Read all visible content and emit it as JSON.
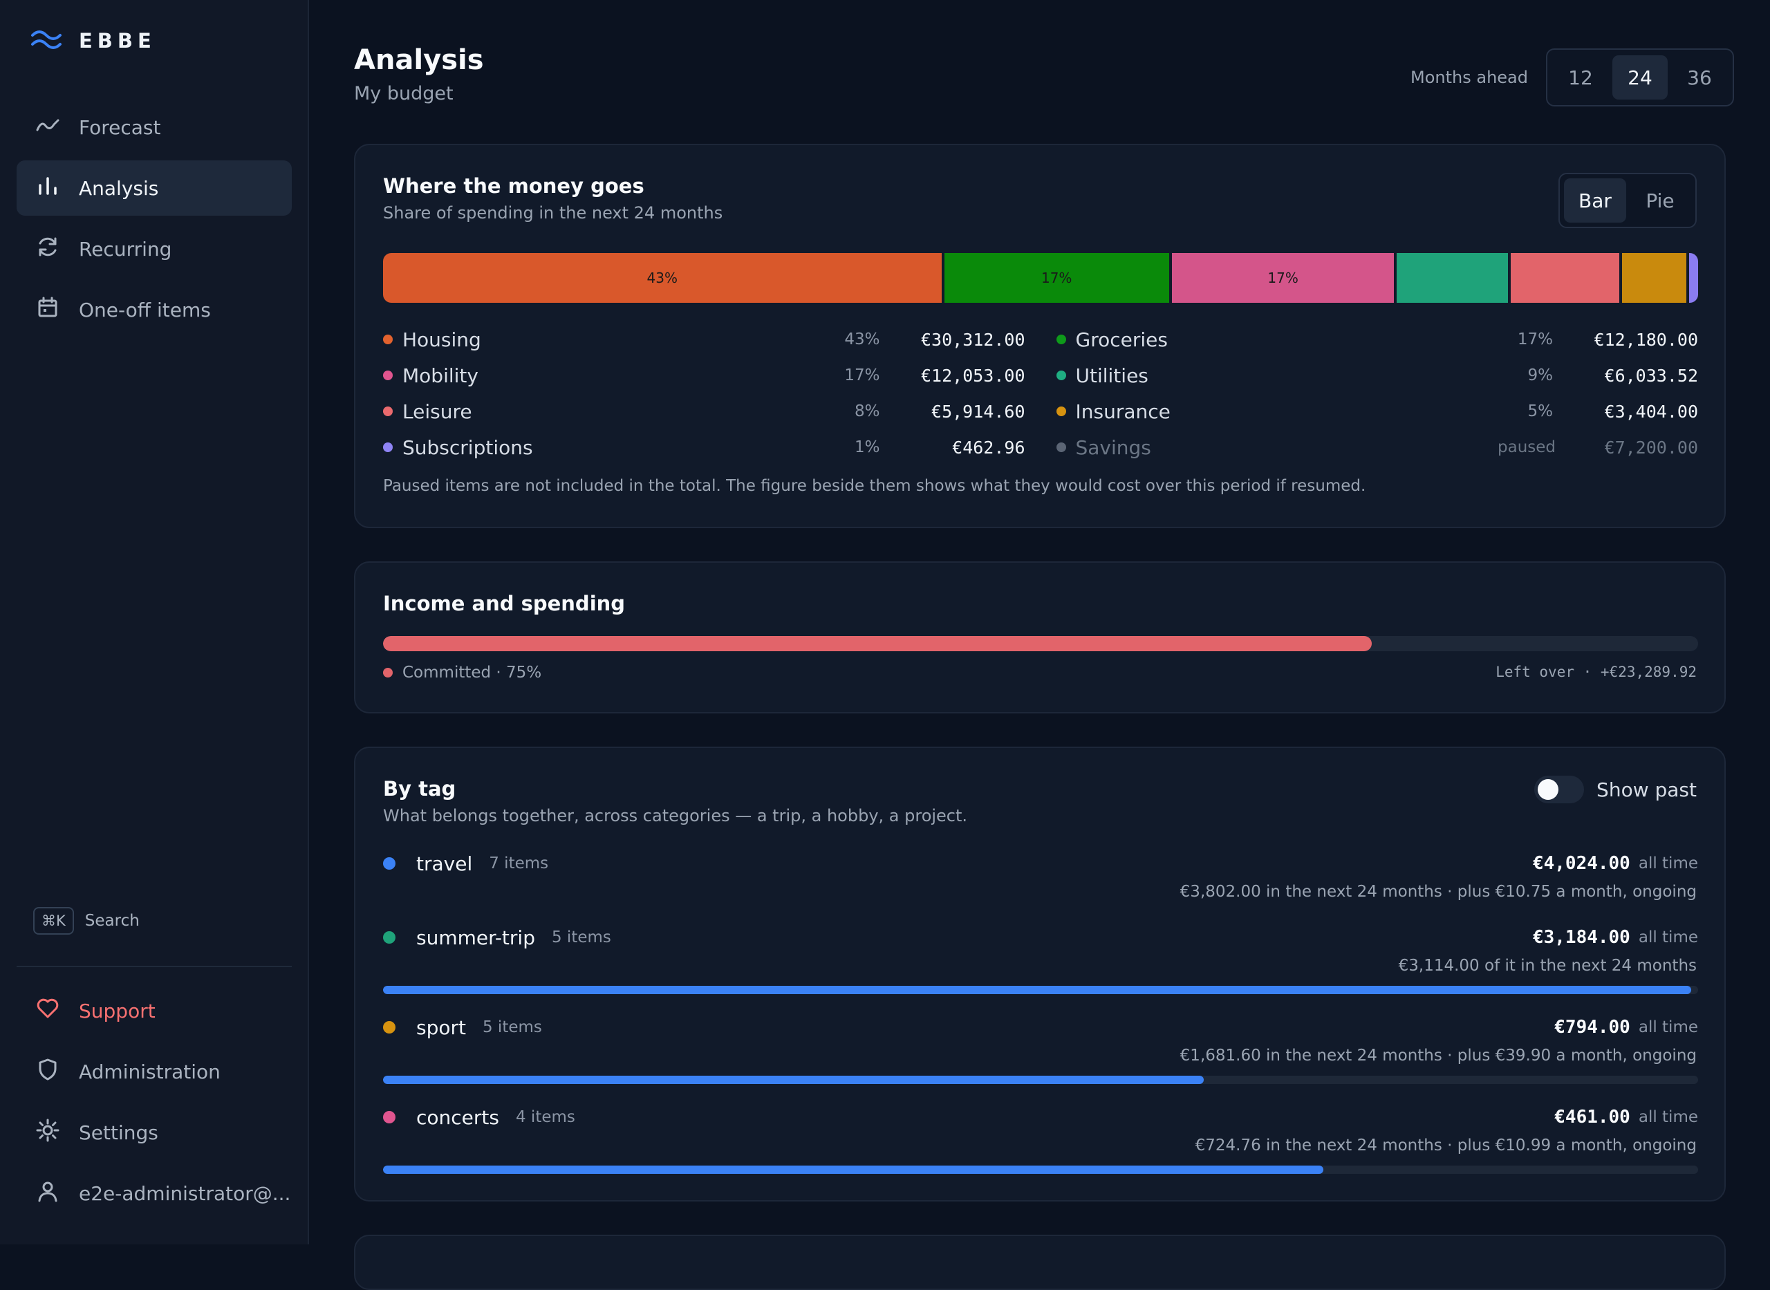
{
  "brand": "EBBE",
  "nav": {
    "forecast": "Forecast",
    "analysis": "Analysis",
    "recurring": "Recurring",
    "oneoff": "One-off items"
  },
  "search": {
    "shortcut": "⌘K",
    "label": "Search"
  },
  "bottom_nav": {
    "support": "Support",
    "administration": "Administration",
    "settings": "Settings",
    "user": "e2e-administrator@..."
  },
  "header": {
    "title": "Analysis",
    "subtitle": "My budget",
    "months_label": "Months ahead",
    "months_options": [
      "12",
      "24",
      "36"
    ],
    "months_selected": "24"
  },
  "spending": {
    "title": "Where the money goes",
    "subtitle": "Share of spending in the next 24 months",
    "view_options": [
      "Bar",
      "Pie"
    ],
    "view_selected": "Bar",
    "segments": [
      {
        "name": "Housing",
        "share": 42.7,
        "label": "43%",
        "color": "#d9582b"
      },
      {
        "name": "Groceries",
        "share": 17.2,
        "label": "17%",
        "color": "#0a8a0a"
      },
      {
        "name": "Mobility",
        "share": 17.0,
        "label": "17%",
        "color": "#d4558a"
      },
      {
        "name": "Utilities",
        "share": 8.5,
        "label": "",
        "color": "#1fa37a"
      },
      {
        "name": "Leisure",
        "share": 8.3,
        "label": "",
        "color": "#e2646a"
      },
      {
        "name": "Insurance",
        "share": 4.9,
        "label": "",
        "color": "#c98a0d"
      },
      {
        "name": "Subscriptions",
        "share": 0.7,
        "label": "",
        "color": "#8a7cf0"
      }
    ],
    "legend_left": [
      {
        "name": "Housing",
        "pct": "43%",
        "amount": "€30,312.00",
        "color": "#e2622e"
      },
      {
        "name": "Mobility",
        "pct": "17%",
        "amount": "€12,053.00",
        "color": "#e0558f"
      },
      {
        "name": "Leisure",
        "pct": "8%",
        "amount": "€5,914.60",
        "color": "#ea6a6e"
      },
      {
        "name": "Subscriptions",
        "pct": "1%",
        "amount": "€462.96",
        "color": "#8f84f5"
      }
    ],
    "legend_right": [
      {
        "name": "Groceries",
        "pct": "17%",
        "amount": "€12,180.00",
        "color": "#0e9a1a"
      },
      {
        "name": "Utilities",
        "pct": "9%",
        "amount": "€6,033.52",
        "color": "#1fae82"
      },
      {
        "name": "Insurance",
        "pct": "5%",
        "amount": "€3,404.00",
        "color": "#d79310"
      },
      {
        "name": "Savings",
        "pct": "paused",
        "amount": "€7,200.00",
        "color": "#5b6575"
      }
    ],
    "note": "Paused items are not included in the total. The figure beside them shows what they would cost over this period if resumed."
  },
  "income": {
    "title": "Income and spending",
    "committed_fraction": 0.752,
    "committed_label": "Committed · 75%",
    "leftover_label": "Left over · +€23,289.92",
    "color": "#e2646a"
  },
  "tags": {
    "title": "By tag",
    "subtitle": "What belongs together, across categories — a trip, a hobby, a project.",
    "show_past_label": "Show past",
    "show_past_on": false,
    "items": [
      {
        "name": "travel",
        "count": "7 items",
        "amount": "€4,024.00",
        "alltime": "all time",
        "detail": "€3,802.00 in the next 24 months · plus €10.75 a month, ongoing",
        "color": "#3b82f6",
        "bar": null
      },
      {
        "name": "summer-trip",
        "count": "5 items",
        "amount": "€3,184.00",
        "alltime": "all time",
        "detail": "€3,114.00 of it in the next 24 months",
        "color": "#1fa37a",
        "bar": 0.995
      },
      {
        "name": "sport",
        "count": "5 items",
        "amount": "€794.00",
        "alltime": "all time",
        "detail": "€1,681.60 in the next 24 months · plus €39.90 a month, ongoing",
        "color": "#d79310",
        "bar": 0.624
      },
      {
        "name": "concerts",
        "count": "4 items",
        "amount": "€461.00",
        "alltime": "all time",
        "detail": "€724.76 in the next 24 months · plus €10.99 a month, ongoing",
        "color": "#e0558f",
        "bar": 0.715
      }
    ]
  }
}
